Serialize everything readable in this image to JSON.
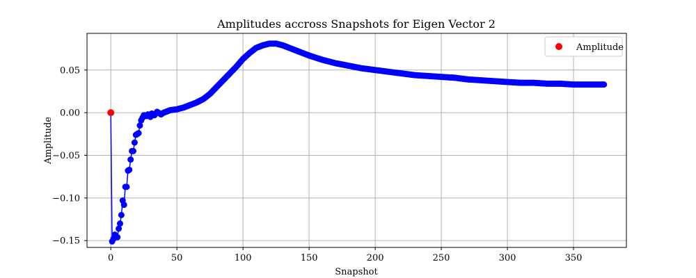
{
  "chart_data": {
    "type": "line",
    "title": "Amplitudes accross Snapshots for Eigen Vector 2",
    "xlabel": "Snapshot",
    "ylabel": "Amplitude",
    "xlim": [
      -18,
      390
    ],
    "ylim": [
      -0.158,
      0.093
    ],
    "xticks": [
      0,
      50,
      100,
      150,
      200,
      250,
      300,
      350
    ],
    "xtick_labels": [
      "0",
      "50",
      "100",
      "150",
      "200",
      "250",
      "300",
      "350"
    ],
    "yticks": [
      -0.15,
      -0.1,
      -0.05,
      0.0,
      0.05
    ],
    "ytick_labels": [
      "−0.15",
      "−0.10",
      "−0.05",
      "0.00",
      "0.05"
    ],
    "grid": true,
    "legend": {
      "position": "top-right",
      "entries": [
        {
          "label": "Amplitude",
          "color": "#ff0000",
          "marker": "circle"
        }
      ]
    },
    "colors": {
      "series": "#0000ff",
      "highlight": "#ff0000",
      "grid": "#b0b0b0"
    },
    "series": [
      {
        "color": "#0000ff",
        "marker": "circle",
        "x_range": [
          0,
          373
        ],
        "key_points": [
          [
            0,
            0.0
          ],
          [
            1,
            -0.151
          ],
          [
            2,
            -0.148
          ],
          [
            3,
            -0.143
          ],
          [
            4,
            -0.145
          ],
          [
            5,
            -0.146
          ],
          [
            6,
            -0.136
          ],
          [
            7,
            -0.13
          ],
          [
            8,
            -0.12
          ],
          [
            9,
            -0.103
          ],
          [
            10,
            -0.108
          ],
          [
            11,
            -0.087
          ],
          [
            12,
            -0.087
          ],
          [
            13,
            -0.068
          ],
          [
            14,
            -0.067
          ],
          [
            15,
            -0.055
          ],
          [
            16,
            -0.045
          ],
          [
            17,
            -0.045
          ],
          [
            18,
            -0.035
          ],
          [
            19,
            -0.026
          ],
          [
            20,
            -0.025
          ],
          [
            21,
            -0.024
          ],
          [
            22,
            -0.015
          ],
          [
            23,
            -0.009
          ],
          [
            24,
            -0.006
          ],
          [
            25,
            -0.003
          ],
          [
            27,
            -0.004
          ],
          [
            28,
            -0.002
          ],
          [
            30,
            -0.005
          ],
          [
            31,
            -0.001
          ],
          [
            33,
            -0.003
          ],
          [
            35,
            0.001
          ],
          [
            38,
            -0.002
          ],
          [
            40,
            0.0
          ],
          [
            45,
            0.003
          ],
          [
            50,
            0.004
          ],
          [
            55,
            0.006
          ],
          [
            60,
            0.009
          ],
          [
            65,
            0.012
          ],
          [
            70,
            0.016
          ],
          [
            75,
            0.022
          ],
          [
            80,
            0.03
          ],
          [
            85,
            0.038
          ],
          [
            90,
            0.046
          ],
          [
            95,
            0.054
          ],
          [
            100,
            0.063
          ],
          [
            105,
            0.07
          ],
          [
            110,
            0.076
          ],
          [
            115,
            0.079
          ],
          [
            120,
            0.081
          ],
          [
            125,
            0.081
          ],
          [
            130,
            0.079
          ],
          [
            135,
            0.076
          ],
          [
            140,
            0.073
          ],
          [
            145,
            0.07
          ],
          [
            150,
            0.067
          ],
          [
            160,
            0.062
          ],
          [
            170,
            0.058
          ],
          [
            180,
            0.055
          ],
          [
            190,
            0.052
          ],
          [
            200,
            0.05
          ],
          [
            210,
            0.048
          ],
          [
            220,
            0.046
          ],
          [
            230,
            0.044
          ],
          [
            240,
            0.043
          ],
          [
            250,
            0.042
          ],
          [
            260,
            0.041
          ],
          [
            270,
            0.039
          ],
          [
            280,
            0.038
          ],
          [
            290,
            0.037
          ],
          [
            300,
            0.036
          ],
          [
            310,
            0.035
          ],
          [
            320,
            0.035
          ],
          [
            330,
            0.034
          ],
          [
            340,
            0.034
          ],
          [
            350,
            0.033
          ],
          [
            360,
            0.033
          ],
          [
            373,
            0.033
          ]
        ]
      },
      {
        "color": "#ff0000",
        "marker": "circle",
        "points": [
          [
            0,
            0.0
          ]
        ]
      }
    ]
  }
}
